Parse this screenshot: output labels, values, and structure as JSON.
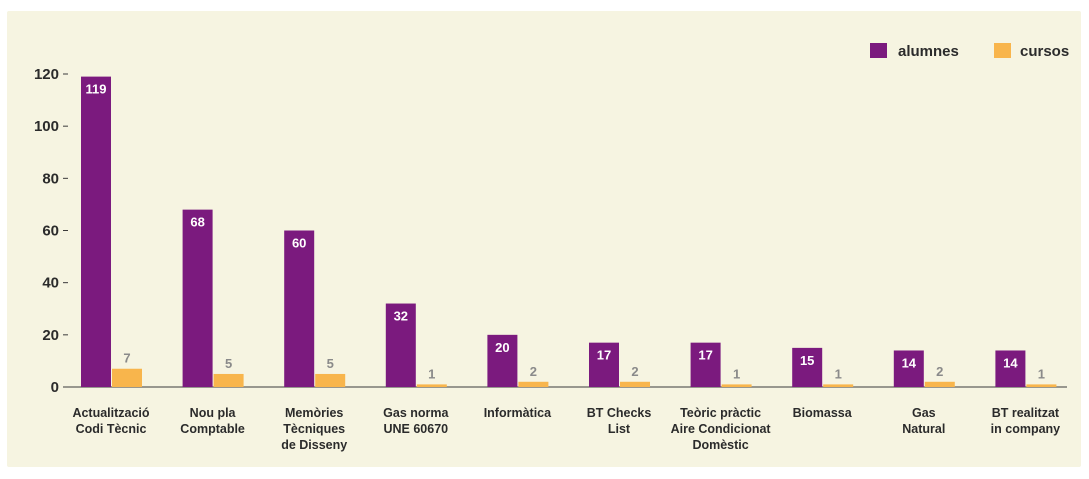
{
  "chart_data": {
    "type": "bar",
    "categories": [
      [
        "Actualització",
        "Codi Tècnic"
      ],
      [
        "Nou pla",
        "Comptable"
      ],
      [
        "Memòries",
        "Tècniques",
        "de Disseny"
      ],
      [
        "Gas norma",
        "UNE 60670"
      ],
      [
        "Informàtica"
      ],
      [
        "BT Checks",
        "List"
      ],
      [
        "Teòric pràctic",
        "Aire Condicionat",
        "Domèstic"
      ],
      [
        "Biomassa"
      ],
      [
        "Gas",
        "Natural"
      ],
      [
        "BT realitzat",
        "in company"
      ]
    ],
    "series": [
      {
        "name": "alumnes",
        "color": "#7b1a7e",
        "values": [
          119,
          68,
          60,
          32,
          20,
          17,
          17,
          15,
          14,
          14
        ]
      },
      {
        "name": "cursos",
        "color": "#f8b54c",
        "values": [
          7,
          5,
          5,
          1,
          2,
          2,
          1,
          1,
          2,
          1
        ]
      }
    ],
    "yticks": [
      0,
      20,
      40,
      60,
      80,
      100,
      120
    ],
    "ylim": [
      0,
      125
    ],
    "legend_position": "top-right",
    "grid": false
  }
}
